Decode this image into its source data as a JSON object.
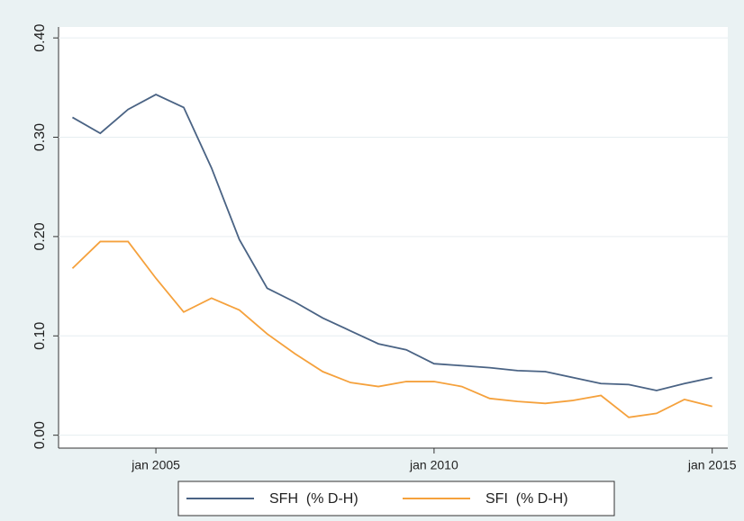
{
  "chart_data": {
    "type": "line",
    "x": [
      2003.5,
      2004,
      2004.5,
      2005,
      2005.5,
      2006,
      2006.5,
      2007,
      2007.5,
      2008,
      2008.5,
      2009,
      2009.5,
      2010,
      2010.5,
      2011,
      2011.5,
      2012,
      2012.5,
      2013,
      2013.5,
      2014,
      2014.5,
      2015
    ],
    "series": [
      {
        "name": "SFH  (% D-H)",
        "color": "#4a6384",
        "values": [
          0.32,
          0.304,
          0.328,
          0.343,
          0.33,
          0.269,
          0.197,
          0.148,
          0.134,
          0.118,
          0.105,
          0.092,
          0.086,
          0.072,
          0.07,
          0.068,
          0.065,
          0.064,
          0.058,
          0.052,
          0.051,
          0.045,
          0.052,
          0.058
        ]
      },
      {
        "name": "SFI  (% D-H)",
        "color": "#f5a13c",
        "values": [
          0.168,
          0.195,
          0.195,
          0.158,
          0.124,
          0.138,
          0.126,
          0.102,
          0.082,
          0.064,
          0.053,
          0.049,
          0.054,
          0.054,
          0.049,
          0.037,
          0.034,
          0.032,
          0.035,
          0.04,
          0.018,
          0.022,
          0.036,
          0.029
        ]
      }
    ],
    "xlim": [
      2003.25,
      2015.28
    ],
    "xticks": [
      {
        "value": 2005,
        "label": "jan 2005"
      },
      {
        "value": 2010,
        "label": "jan 2010"
      },
      {
        "value": 2015,
        "label": "jan 2015"
      }
    ],
    "ylim": [
      -0.013,
      0.411
    ],
    "yticks": [
      {
        "value": 0,
        "label": "0.00"
      },
      {
        "value": 0.1,
        "label": "0.10"
      },
      {
        "value": 0.2,
        "label": "0.20"
      },
      {
        "value": 0.3,
        "label": "0.30"
      },
      {
        "value": 0.4,
        "label": "0.40"
      }
    ],
    "grid": true
  }
}
